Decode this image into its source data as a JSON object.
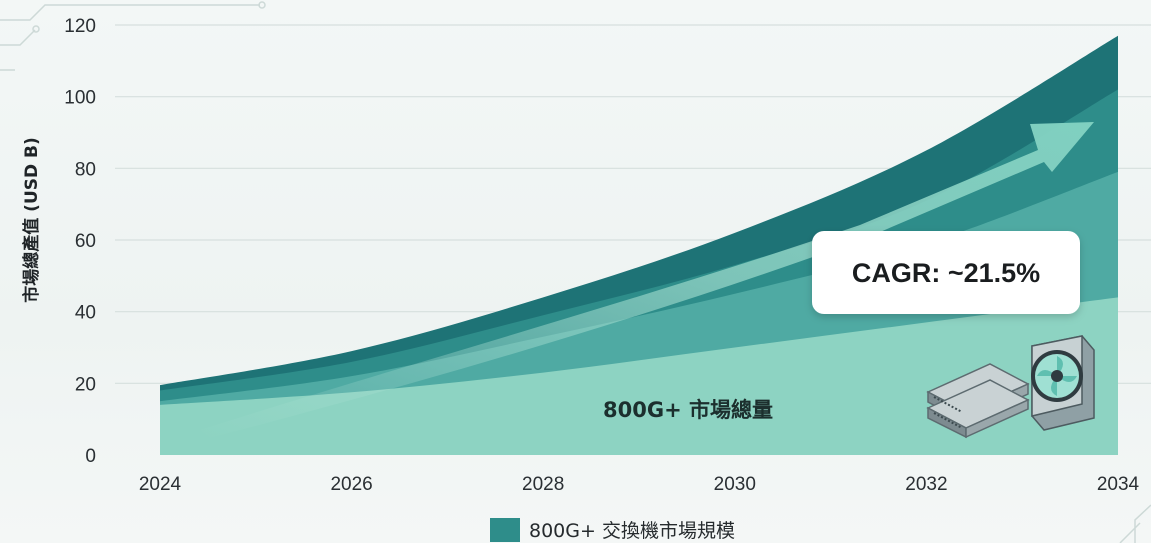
{
  "chart_data": {
    "type": "area",
    "x": [
      2024,
      2026,
      2028,
      2030,
      2032,
      2034
    ],
    "ylabel": "市場總產值 (USD B)",
    "ylim": [
      0,
      120
    ],
    "yticks": [
      0,
      20,
      40,
      60,
      80,
      100,
      120
    ],
    "xticks": [
      "2024",
      "2026",
      "2028",
      "2030",
      "2032",
      "2034"
    ],
    "grid": true,
    "series": [
      {
        "values": [
          14,
          17.5,
          23,
          30,
          37,
          44
        ],
        "color": "#8dd3c2"
      },
      {
        "values": [
          15,
          22,
          33,
          45,
          59,
          79
        ],
        "color": "#4faaa3"
      },
      {
        "values": [
          18,
          26,
          39,
          53,
          71,
          102
        ],
        "color": "#2e8d8a"
      },
      {
        "values": [
          19.5,
          29,
          44,
          62,
          85,
          117
        ],
        "color": "#1e7376"
      }
    ],
    "area_label": "800G+ 市場總量",
    "annotation": "CAGR: ~21.5%",
    "legend": {
      "label": "800G+ 交換機市場規模",
      "color": "#2e8d8a",
      "position": "bottom-center"
    }
  }
}
